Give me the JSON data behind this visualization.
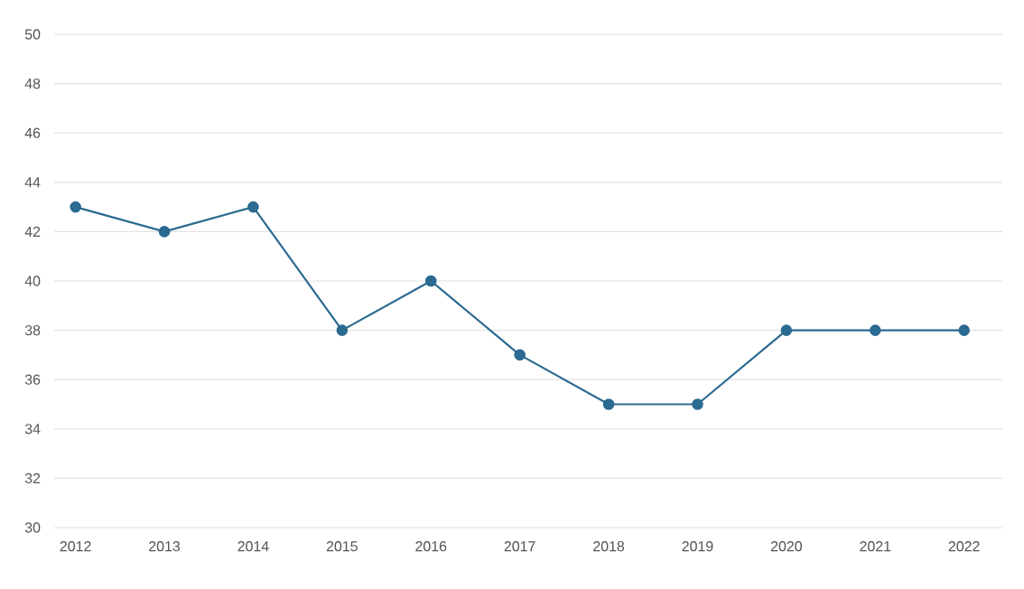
{
  "chart_data": {
    "type": "line",
    "categories": [
      "2012",
      "2013",
      "2014",
      "2015",
      "2016",
      "2017",
      "2018",
      "2019",
      "2020",
      "2021",
      "2022"
    ],
    "series": [
      {
        "color": "#2b6a91",
        "values": [
          43,
          42,
          43,
          38,
          40,
          37,
          35,
          35,
          38,
          38,
          38
        ]
      }
    ],
    "ylim": [
      30,
      50
    ],
    "yticks": [
      30,
      32,
      34,
      36,
      38,
      40,
      42,
      44,
      46,
      48,
      50
    ],
    "grid": "y",
    "marker": "circle",
    "line_style": "solid"
  }
}
